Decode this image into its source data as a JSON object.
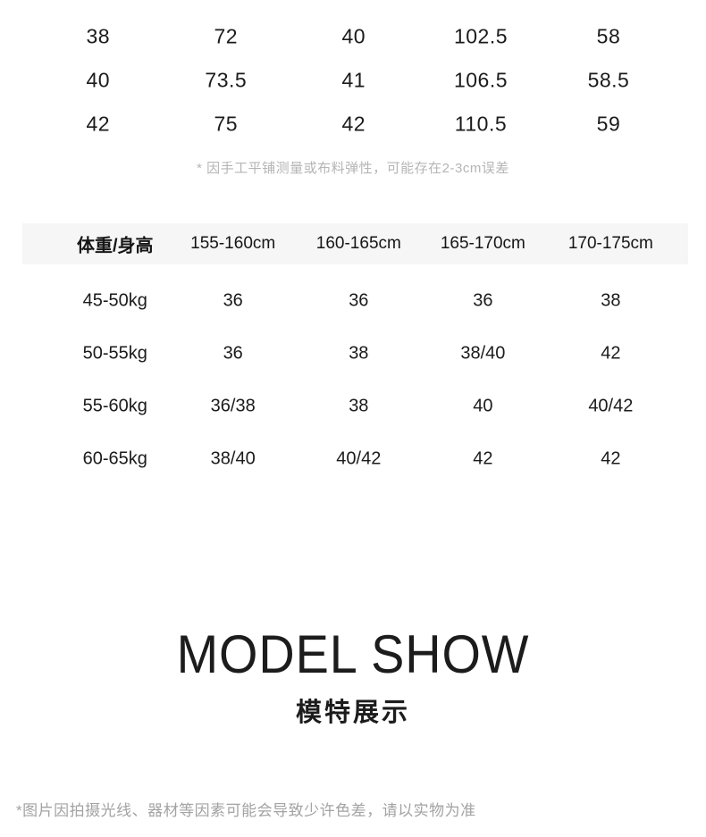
{
  "colors": {
    "page_bg": "#ffffff",
    "text": "#1a1a1a",
    "measure_note": "#b5b5b5",
    "footer_note": "#a3a3a3",
    "header_band": "#f6f6f6"
  },
  "size_table": {
    "rows": [
      [
        "38",
        "72",
        "40",
        "102.5",
        "58"
      ],
      [
        "40",
        "73.5",
        "41",
        "106.5",
        "58.5"
      ],
      [
        "42",
        "75",
        "42",
        "110.5",
        "59"
      ]
    ],
    "note": "* 因手工平铺测量或布料弹性，可能存在2-3cm误差"
  },
  "fit_table": {
    "headers": [
      "体重/身高",
      "155-160cm",
      "160-165cm",
      "165-170cm",
      "170-175cm"
    ],
    "rows": [
      [
        "45-50kg",
        "36",
        "36",
        "36",
        "38"
      ],
      [
        "50-55kg",
        "36",
        "38",
        "38/40",
        "42"
      ],
      [
        "55-60kg",
        "36/38",
        "38",
        "40",
        "40/42"
      ],
      [
        "60-65kg",
        "38/40",
        "40/42",
        "42",
        "42"
      ]
    ]
  },
  "model_show": {
    "title": "MODEL SHOW",
    "subtitle": "模特展示"
  },
  "footer_note": "*图片因拍摄光线、器材等因素可能会导致少许色差，请以实物为准"
}
